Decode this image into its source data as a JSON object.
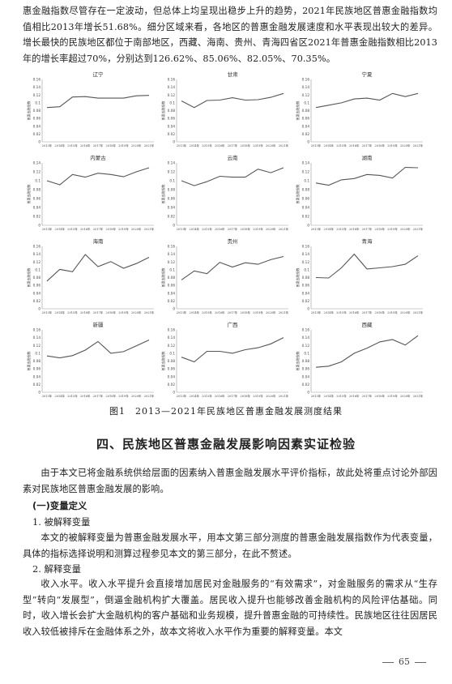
{
  "intro": {
    "text": "惠金融指数尽管存在一定波动，但总体上均呈现出稳步上升的趋势，2021年民族地区普惠金融指数均值相比2013年增长51.68%。细分区域来看，各地区的普惠金融发展速度和水平表现出较大的差异。增长最快的民族地区都位于南部地区，西藏、海南、贵州、青海四省区2021年普惠金融指数相比2013年的增长率超过70%，分别达到126.62%、85.06%、82.05%、70.35%。"
  },
  "chart_data": [
    {
      "type": "line",
      "title": "辽宁",
      "ylabel": "普惠金融指数",
      "x": [
        "2013年",
        "2014年",
        "2015年",
        "2016年",
        "2017年",
        "2018年",
        "2019年",
        "2020年",
        "2021年"
      ],
      "ylim": [
        0,
        0.16
      ],
      "y_ticks": [
        "0",
        "0.02",
        "0.04",
        "0.06",
        "0.08",
        "0.1",
        "0.12",
        "0.14",
        "0.16"
      ],
      "values": [
        0.088,
        0.09,
        0.115,
        0.116,
        0.112,
        0.112,
        0.112,
        0.118,
        0.119
      ]
    },
    {
      "type": "line",
      "title": "甘肃",
      "ylabel": "普惠金融指数",
      "x": [
        "2013年",
        "2014年",
        "2015年",
        "2016年",
        "2017年",
        "2018年",
        "2019年",
        "2020年",
        "2021年"
      ],
      "ylim": [
        0,
        0.16
      ],
      "y_ticks": [
        "0",
        "0.02",
        "0.04",
        "0.06",
        "0.08",
        "0.1",
        "0.12",
        "0.14",
        "0.16"
      ],
      "values": [
        0.105,
        0.088,
        0.106,
        0.107,
        0.113,
        0.107,
        0.108,
        0.114,
        0.124
      ]
    },
    {
      "type": "line",
      "title": "宁夏",
      "ylabel": "普惠金融指数",
      "x": [
        "2013年",
        "2014年",
        "2015年",
        "2016年",
        "2017年",
        "2018年",
        "2019年",
        "2020年",
        "2021年"
      ],
      "ylim": [
        0,
        0.16
      ],
      "y_ticks": [
        "0",
        "0.02",
        "0.04",
        "0.06",
        "0.08",
        "0.1",
        "0.12",
        "0.14",
        "0.16"
      ],
      "values": [
        0.088,
        0.094,
        0.1,
        0.11,
        0.112,
        0.107,
        0.124,
        0.116,
        0.124
      ]
    },
    {
      "type": "line",
      "title": "内蒙古",
      "ylabel": "普惠金融指数",
      "x": [
        "2013年",
        "2014年",
        "2015年",
        "2016年",
        "2017年",
        "2018年",
        "2019年",
        "2020年",
        "2021年"
      ],
      "ylim": [
        0,
        0.14
      ],
      "y_ticks": [
        "0",
        "0.02",
        "0.04",
        "0.06",
        "0.08",
        "0.1",
        "0.12",
        "0.14"
      ],
      "values": [
        0.1,
        0.091,
        0.114,
        0.108,
        0.117,
        0.114,
        0.109,
        0.12,
        0.129
      ]
    },
    {
      "type": "line",
      "title": "云南",
      "ylabel": "普惠金融指数",
      "x": [
        "2013年",
        "2014年",
        "2015年",
        "2016年",
        "2017年",
        "2018年",
        "2019年",
        "2020年",
        "2021年"
      ],
      "ylim": [
        0,
        0.14
      ],
      "y_ticks": [
        "0",
        "0.02",
        "0.04",
        "0.06",
        "0.08",
        "0.1",
        "0.12",
        "0.14"
      ],
      "values": [
        0.1,
        0.089,
        0.098,
        0.11,
        0.108,
        0.108,
        0.126,
        0.118,
        0.129
      ]
    },
    {
      "type": "line",
      "title": "湖南",
      "ylabel": "普惠金融指数",
      "x": [
        "2013年",
        "2014年",
        "2015年",
        "2016年",
        "2017年",
        "2018年",
        "2019年",
        "2020年",
        "2021年"
      ],
      "ylim": [
        0,
        0.14
      ],
      "y_ticks": [
        "0",
        "0.02",
        "0.04",
        "0.06",
        "0.08",
        "0.1",
        "0.12",
        "0.14"
      ],
      "values": [
        0.095,
        0.09,
        0.102,
        0.105,
        0.114,
        0.112,
        0.106,
        0.13,
        0.129
      ]
    },
    {
      "type": "line",
      "title": "海南",
      "ylabel": "普惠金融指数",
      "x": [
        "2013年",
        "2014年",
        "2015年",
        "2016年",
        "2017年",
        "2018年",
        "2019年",
        "2020年",
        "2021年"
      ],
      "ylim": [
        0,
        0.16
      ],
      "y_ticks": [
        "0",
        "0.02",
        "0.04",
        "0.06",
        "0.08",
        "0.1",
        "0.12",
        "0.14",
        "0.16"
      ],
      "values": [
        0.071,
        0.101,
        0.095,
        0.139,
        0.108,
        0.121,
        0.104,
        0.116,
        0.132
      ]
    },
    {
      "type": "line",
      "title": "贵州",
      "ylabel": "普惠金融指数",
      "x": [
        "2013年",
        "2014年",
        "2015年",
        "2016年",
        "2017年",
        "2018年",
        "2019年",
        "2020年",
        "2021年"
      ],
      "ylim": [
        0,
        0.16
      ],
      "y_ticks": [
        "0",
        "0.02",
        "0.04",
        "0.06",
        "0.08",
        "0.1",
        "0.12",
        "0.14",
        "0.16"
      ],
      "values": [
        0.074,
        0.097,
        0.09,
        0.119,
        0.107,
        0.118,
        0.114,
        0.126,
        0.134
      ]
    },
    {
      "type": "line",
      "title": "青海",
      "ylabel": "普惠金融指数",
      "x": [
        "2013年",
        "2014年",
        "2015年",
        "2016年",
        "2017年",
        "2018年",
        "2019年",
        "2020年",
        "2021年"
      ],
      "ylim": [
        0,
        0.16
      ],
      "y_ticks": [
        "0",
        "0.02",
        "0.04",
        "0.06",
        "0.08",
        "0.1",
        "0.12",
        "0.14",
        "0.16"
      ],
      "values": [
        0.08,
        0.079,
        0.105,
        0.14,
        0.102,
        0.105,
        0.108,
        0.114,
        0.136
      ]
    },
    {
      "type": "line",
      "title": "新疆",
      "ylabel": "普惠金融指数",
      "x": [
        "2013年",
        "2014年",
        "2015年",
        "2016年",
        "2017年",
        "2018年",
        "2019年",
        "2020年",
        "2021年"
      ],
      "ylim": [
        0,
        0.16
      ],
      "y_ticks": [
        "0",
        "0.02",
        "0.04",
        "0.06",
        "0.08",
        "0.1",
        "0.12",
        "0.14",
        "0.16"
      ],
      "values": [
        0.093,
        0.088,
        0.094,
        0.108,
        0.13,
        0.1,
        0.104,
        0.119,
        0.134
      ]
    },
    {
      "type": "line",
      "title": "广西",
      "ylabel": "普惠金融指数",
      "x": [
        "2013年",
        "2014年",
        "2015年",
        "2016年",
        "2017年",
        "2018年",
        "2019年",
        "2020年",
        "2021年"
      ],
      "ylim": [
        0,
        0.16
      ],
      "y_ticks": [
        "0",
        "0.02",
        "0.04",
        "0.06",
        "0.08",
        "0.1",
        "0.12",
        "0.14",
        "0.16"
      ],
      "values": [
        0.09,
        0.078,
        0.105,
        0.105,
        0.1,
        0.109,
        0.114,
        0.124,
        0.14
      ]
    },
    {
      "type": "line",
      "title": "西藏",
      "ylabel": "普惠金融指数",
      "x": [
        "2013年",
        "2014年",
        "2015年",
        "2016年",
        "2017年",
        "2018年",
        "2019年",
        "2020年",
        "2021年"
      ],
      "ylim": [
        0,
        0.16
      ],
      "y_ticks": [
        "0",
        "0.02",
        "0.04",
        "0.06",
        "0.08",
        "0.1",
        "0.12",
        "0.14",
        "0.16"
      ],
      "values": [
        0.064,
        0.067,
        0.078,
        0.1,
        0.113,
        0.129,
        0.135,
        0.121,
        0.145
      ]
    }
  ],
  "figure_caption": "图1　2013—2021年民族地区普惠金融发展测度结果",
  "section_title": "四、民族地区普惠金融发展影响因素实证检验",
  "para1": "由于本文已将金融系统供给层面的因素纳入普惠金融发展水平评价指标，故此处将重点讨论外部因素对民族地区普惠金融发展的影响。",
  "heading1": "(一)变量定义",
  "heading2": "1. 被解释变量",
  "para2": "本文的被解释变量为普惠金融发展水平，用本文第三部分测度的普惠金融发展指数作为代表变量，具体的指标选择说明和测算过程参见本文的第三部分，在此不赘述。",
  "heading3": "2. 解释变量",
  "para3": "收入水平。收入水平提升会直接增加居民对金融服务的“有效需求”，对金融服务的需求从“生存型”转向“发展型”，倒逼金融机构扩大覆盖。居民收入提升也能够改善金融机构的风险评估基础。同时，收入增长会扩大金融机构的客户基础和业务规模，提升普惠金融的可持续性。民族地区往往因居民收入较低被排斥在金融体系之外，故本文将收入水平作为重要的解释变量。本文",
  "page_number": "65"
}
